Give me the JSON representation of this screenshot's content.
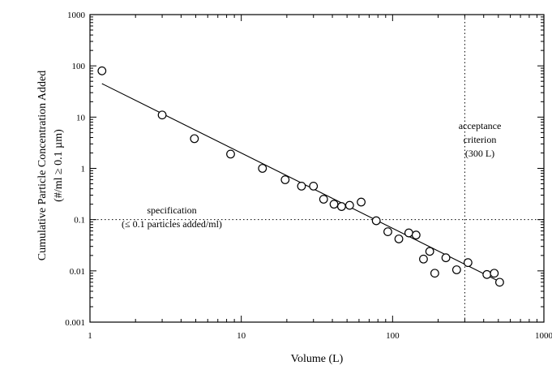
{
  "chart_data": {
    "type": "scatter",
    "title": "",
    "xlabel": "Volume (L)",
    "ylabel_line1": "Cumulative Particle Concentration Added",
    "ylabel_line2": "(#/ml ≥ 0.1 µm)",
    "x_scale": "log",
    "y_scale": "log",
    "xlim": [
      1,
      1000
    ],
    "ylim": [
      0.001,
      1000
    ],
    "x_ticks": [
      1,
      10,
      100,
      1000
    ],
    "x_tick_labels": [
      "1",
      "10",
      "100",
      "1000"
    ],
    "y_ticks": [
      0.001,
      0.01,
      0.1,
      1,
      10,
      100,
      1000
    ],
    "y_tick_labels": [
      "0.001",
      "0.01",
      "0.1",
      "1",
      "10",
      "100",
      "1000"
    ],
    "grid": false,
    "series": [
      {
        "marker": "open-circle",
        "x": [
          1.2,
          3.0,
          4.9,
          8.5,
          13.8,
          19.5,
          25,
          30,
          35,
          41,
          46,
          52,
          62,
          78,
          93,
          110,
          128,
          143,
          160,
          176,
          190,
          225,
          265,
          315,
          420,
          470,
          510
        ],
        "y": [
          80,
          11,
          3.8,
          1.9,
          1.0,
          0.6,
          0.45,
          0.45,
          0.25,
          0.2,
          0.18,
          0.19,
          0.22,
          0.095,
          0.058,
          0.042,
          0.055,
          0.05,
          0.017,
          0.024,
          0.009,
          0.018,
          0.0105,
          0.0145,
          0.0085,
          0.009,
          0.006
        ]
      }
    ],
    "fit_line": {
      "x": [
        1.2,
        520
      ],
      "y": [
        45,
        0.006
      ]
    },
    "reference_lines": [
      {
        "orientation": "horizontal",
        "value": 0.1,
        "style": "dotted"
      },
      {
        "orientation": "vertical",
        "value": 300,
        "style": "dotted"
      }
    ],
    "annotations": [
      {
        "id": "specification",
        "lines": [
          "specification",
          "(≤ 0.1 particles added/ml)"
        ]
      },
      {
        "id": "acceptance",
        "lines": [
          "acceptance",
          "criterion",
          "(300 L)"
        ]
      }
    ]
  }
}
